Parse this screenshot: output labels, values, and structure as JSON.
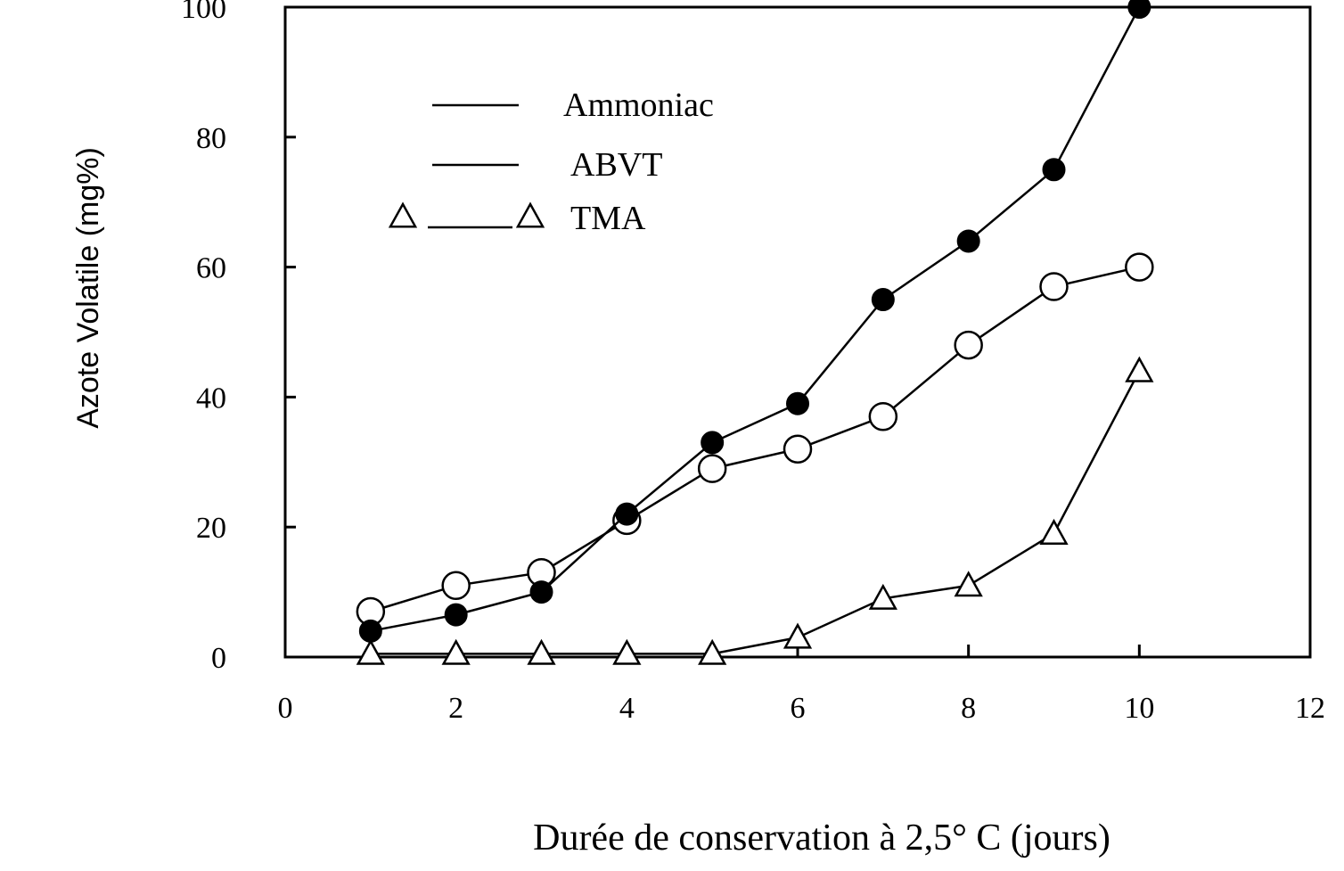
{
  "chart_data": {
    "type": "line",
    "title": "",
    "xlabel": "Durée de conservation à 2,5° C (jours)",
    "ylabel": "Azote Volatile (mg%)",
    "xlim": [
      0,
      12
    ],
    "ylim": [
      0,
      100
    ],
    "x_ticks": [
      0,
      2,
      4,
      6,
      8,
      10,
      12
    ],
    "y_ticks": [
      0,
      20,
      40,
      60,
      80,
      100
    ],
    "grid": false,
    "legend_position": "top-left",
    "x": [
      1,
      2,
      3,
      4,
      5,
      6,
      7,
      8,
      9,
      10
    ],
    "series": [
      {
        "name": "Ammoniac",
        "marker": "open-circle",
        "values": [
          7,
          11,
          13,
          21,
          29,
          32,
          37,
          48,
          57,
          60
        ]
      },
      {
        "name": "ABVT",
        "marker": "filled-circle",
        "values": [
          4,
          6.5,
          10,
          22,
          33,
          39,
          55,
          64,
          75,
          100
        ]
      },
      {
        "name": "TMA",
        "marker": "open-triangle",
        "values": [
          0.5,
          0.5,
          0.5,
          0.5,
          0.5,
          3,
          9,
          11,
          19,
          44
        ]
      }
    ],
    "colors": {
      "line": "#000000",
      "background": "#ffffff"
    }
  }
}
